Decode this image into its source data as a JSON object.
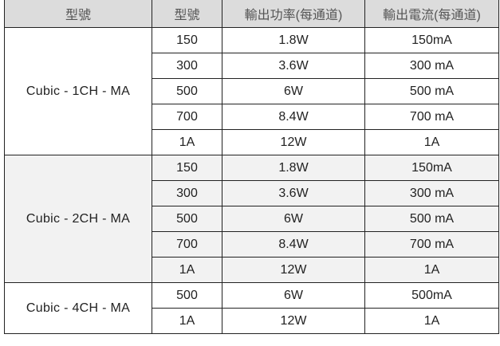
{
  "table": {
    "headers": [
      "型號",
      "型號",
      "輸出功率(每通道)",
      "輸出電流(每通道)"
    ],
    "groups": [
      {
        "model": "Cubic - 1CH - MA",
        "shaded": false,
        "rows": [
          [
            "150",
            "1.8W",
            "150mA"
          ],
          [
            "300",
            "3.6W",
            "300 mA"
          ],
          [
            "500",
            "6W",
            "500 mA"
          ],
          [
            "700",
            "8.4W",
            "700 mA"
          ],
          [
            "1A",
            "12W",
            "1A"
          ]
        ]
      },
      {
        "model": "Cubic - 2CH - MA",
        "shaded": true,
        "rows": [
          [
            "150",
            "1.8W",
            "150mA"
          ],
          [
            "300",
            "3.6W",
            "300 mA"
          ],
          [
            "500",
            "6W",
            "500 mA"
          ],
          [
            "700",
            "8.4W",
            "700 mA"
          ],
          [
            "1A",
            "12W",
            "1A"
          ]
        ]
      },
      {
        "model": "Cubic - 4CH - MA",
        "shaded": false,
        "rows": [
          [
            "500",
            "6W",
            "500mA"
          ],
          [
            "1A",
            "12W",
            "1A"
          ]
        ]
      }
    ]
  }
}
